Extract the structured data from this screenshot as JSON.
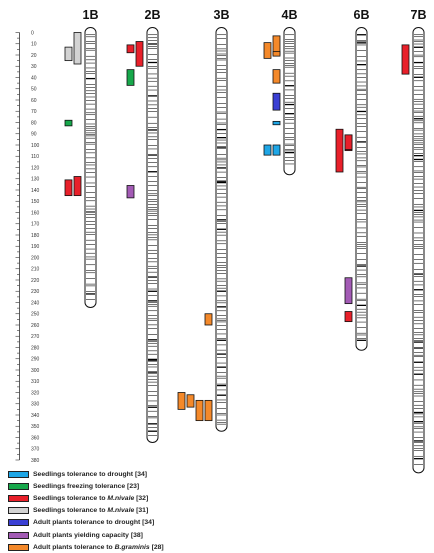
{
  "scale": {
    "ticks": [
      "0",
      "10",
      "20",
      "30",
      "40",
      "50",
      "60",
      "70",
      "80",
      "90",
      "100",
      "110",
      "120",
      "130",
      "140",
      "150",
      "160",
      "170",
      "180",
      "190",
      "200",
      "210",
      "220",
      "230",
      "240",
      "250",
      "260",
      "270",
      "280",
      "290",
      "300",
      "310",
      "320",
      "330",
      "340",
      "350",
      "360",
      "370",
      "380"
    ]
  },
  "chromosomes": [
    {
      "id": "1B",
      "label": "1B",
      "length": 240
    },
    {
      "id": "2B",
      "label": "2B",
      "length": 360
    },
    {
      "id": "3B",
      "label": "3B",
      "length": 350
    },
    {
      "id": "4B",
      "label": "4B",
      "length": 122
    },
    {
      "id": "6B",
      "label": "6B",
      "length": 278
    },
    {
      "id": "7B",
      "label": "7B",
      "length": 387
    }
  ],
  "qtls": [
    {
      "chrom": "1B",
      "trait": "seedlings-tolerance-m-nivale-31",
      "start": 0,
      "end": 28,
      "col": 0
    },
    {
      "chrom": "1B",
      "trait": "seedlings-tolerance-m-nivale-31",
      "start": 13,
      "end": 25,
      "col": 1
    },
    {
      "chrom": "1B",
      "trait": "seedlings-freezing-tolerance",
      "start": 78,
      "end": 83,
      "col": 1
    },
    {
      "chrom": "1B",
      "trait": "seedlings-tolerance-m-nivale-32",
      "start": 128,
      "end": 145,
      "col": 0
    },
    {
      "chrom": "1B",
      "trait": "seedlings-tolerance-m-nivale-32",
      "start": 131,
      "end": 145,
      "col": 1
    },
    {
      "chrom": "2B",
      "trait": "seedlings-tolerance-m-nivale-32",
      "start": 8,
      "end": 30,
      "col": 0
    },
    {
      "chrom": "2B",
      "trait": "seedlings-tolerance-m-nivale-32",
      "start": 11,
      "end": 18,
      "col": 1
    },
    {
      "chrom": "2B",
      "trait": "seedlings-freezing-tolerance",
      "start": 33,
      "end": 47,
      "col": 1
    },
    {
      "chrom": "2B",
      "trait": "adult-plants-yielding-capacity",
      "start": 136,
      "end": 147,
      "col": 1
    },
    {
      "chrom": "3B",
      "trait": "adult-plants-tolerance-b-graminis",
      "start": 250,
      "end": 260,
      "col": 0
    },
    {
      "chrom": "3B",
      "trait": "adult-plants-tolerance-b-graminis",
      "start": 320,
      "end": 335,
      "col": -3
    },
    {
      "chrom": "3B",
      "trait": "adult-plants-tolerance-b-graminis",
      "start": 322,
      "end": 333,
      "col": -2
    },
    {
      "chrom": "3B",
      "trait": "adult-plants-tolerance-b-graminis",
      "start": 327,
      "end": 345,
      "col": -1
    },
    {
      "chrom": "3B",
      "trait": "adult-plants-tolerance-b-graminis",
      "start": 327,
      "end": 345,
      "col": 0
    },
    {
      "chrom": "4B",
      "trait": "adult-plants-tolerance-b-graminis",
      "start": 3,
      "end": 20,
      "col": 0
    },
    {
      "chrom": "4B",
      "trait": "adult-plants-tolerance-b-graminis",
      "start": 9,
      "end": 23,
      "col": 1
    },
    {
      "chrom": "4B",
      "trait": "adult-plants-tolerance-b-graminis",
      "start": 17,
      "end": 21,
      "col": 2
    },
    {
      "chrom": "4B",
      "trait": "adult-plants-tolerance-b-graminis",
      "start": 33,
      "end": 45,
      "col": 2
    },
    {
      "chrom": "4B",
      "trait": "adult-plants-tolerance-drought",
      "start": 54,
      "end": 69,
      "col": 2
    },
    {
      "chrom": "4B",
      "trait": "seedlings-tolerance-drought",
      "start": 79,
      "end": 82,
      "col": 2
    },
    {
      "chrom": "4B",
      "trait": "seedlings-tolerance-drought",
      "start": 100,
      "end": 109,
      "col": 1
    },
    {
      "chrom": "4B",
      "trait": "seedlings-tolerance-drought",
      "start": 100,
      "end": 109,
      "col": 2
    },
    {
      "chrom": "6B",
      "trait": "seedlings-tolerance-m-nivale-32",
      "start": 91,
      "end": 105,
      "col": 0
    },
    {
      "chrom": "6B",
      "trait": "seedlings-tolerance-m-nivale-32",
      "start": 86,
      "end": 124,
      "col": 1
    },
    {
      "chrom": "6B",
      "trait": "seedlings-tolerance-m-nivale-32",
      "start": 91,
      "end": 104,
      "col": 2
    },
    {
      "chrom": "6B",
      "trait": "adult-plants-yielding-capacity",
      "start": 218,
      "end": 241,
      "col": 2
    },
    {
      "chrom": "6B",
      "trait": "seedlings-tolerance-m-nivale-32",
      "start": 248,
      "end": 257,
      "col": 2
    },
    {
      "chrom": "7B",
      "trait": "seedlings-tolerance-m-nivale-32",
      "start": 11,
      "end": 37,
      "col": 0
    }
  ],
  "legend": [
    {
      "id": "seedlings-tolerance-drought",
      "color": "#1ea6e6",
      "label": "Seedlings tolerance to drought [34]",
      "label_plain": "Seedlings tolerance to drought [34]"
    },
    {
      "id": "seedlings-freezing-tolerance",
      "color": "#17a84b",
      "label": "Seedlings  freezing tolerance [23]",
      "label_plain": "Seedlings  freezing tolerance [23]"
    },
    {
      "id": "seedlings-tolerance-m-nivale-32",
      "color": "#e8202a",
      "label_prefix": "Seedlings tolerance to ",
      "label_italic": "M.nivale",
      "label_suffix": " [32]"
    },
    {
      "id": "seedlings-tolerance-m-nivale-31",
      "color": "#d3d3d3",
      "label_prefix": "Seedlings tolerance to ",
      "label_italic": "M.nivale",
      "label_suffix": " [31]"
    },
    {
      "id": "adult-plants-tolerance-drought",
      "color": "#3a3fd4",
      "label": "Adult plants tolerance to drought [34]",
      "label_plain": "Adult plants tolerance to drought [34]"
    },
    {
      "id": "adult-plants-yielding-capacity",
      "color": "#a35bb5",
      "label": "Adult plants yielding capacity [38]",
      "label_plain": "Adult plants yielding capacity [38]"
    },
    {
      "id": "adult-plants-tolerance-b-graminis",
      "color": "#f4892a",
      "label_prefix": "Adult plants tolerance to ",
      "label_italic": "B.graminis",
      "label_suffix": " [28]"
    }
  ]
}
